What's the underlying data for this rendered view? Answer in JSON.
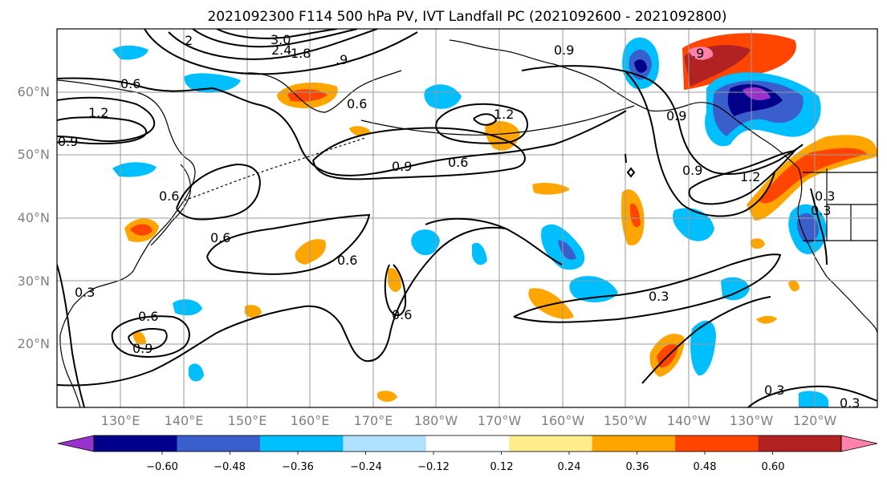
{
  "title": "2021092300 F114 500 hPa PV, IVT Landfall PC (2021092600 - 2021092800)",
  "latitude_labels": [
    "60°N",
    "50°N",
    "40°N",
    "30°N",
    "20°N"
  ],
  "longitude_labels": [
    "130°E",
    "140°E",
    "150°E",
    "160°E",
    "170°E",
    "180°W",
    "170°W",
    "160°W",
    "150°W",
    "140°W",
    "130°W",
    "120°W"
  ],
  "contour_labels": [
    "3.0",
    "2.4",
    "1.8",
    "2",
    ".9",
    "0.6",
    "1.2",
    "0.9",
    "0.6",
    "1.2",
    "0.9",
    "0.6",
    "0.9",
    ".9",
    "0.9",
    "0.9",
    "1.2",
    "0.3",
    "0.3",
    "0.6",
    "0.6",
    "0.6",
    "0.6",
    "0.6",
    "0.9",
    "0.3",
    "0.3",
    "0.3",
    "0.3"
  ],
  "colorbar": {
    "tick_labels": [
      "−0.60",
      "−0.48",
      "−0.36",
      "−0.24",
      "−0.12",
      "0.12",
      "0.24",
      "0.36",
      "0.48",
      "0.60"
    ],
    "colors": [
      "#9932cc",
      "#00008b",
      "#3a5fcd",
      "#00bfff",
      "#b0e2ff",
      "#ffffff",
      "#ffec8b",
      "#ffa500",
      "#ff4500",
      "#b22222",
      "#ff82ab"
    ]
  },
  "shading_colors": {
    "neg_strong": "#00008b",
    "neg_purple": "#9932cc",
    "neg_mid": "#3a5fcd",
    "neg_light": "#00bfff",
    "neg_pale": "#b0e2ff",
    "pos_pale": "#ffec8b",
    "pos_light": "#ffa500",
    "pos_mid": "#ff4500",
    "pos_strong": "#b22222",
    "pos_pink": "#ff82ab"
  }
}
